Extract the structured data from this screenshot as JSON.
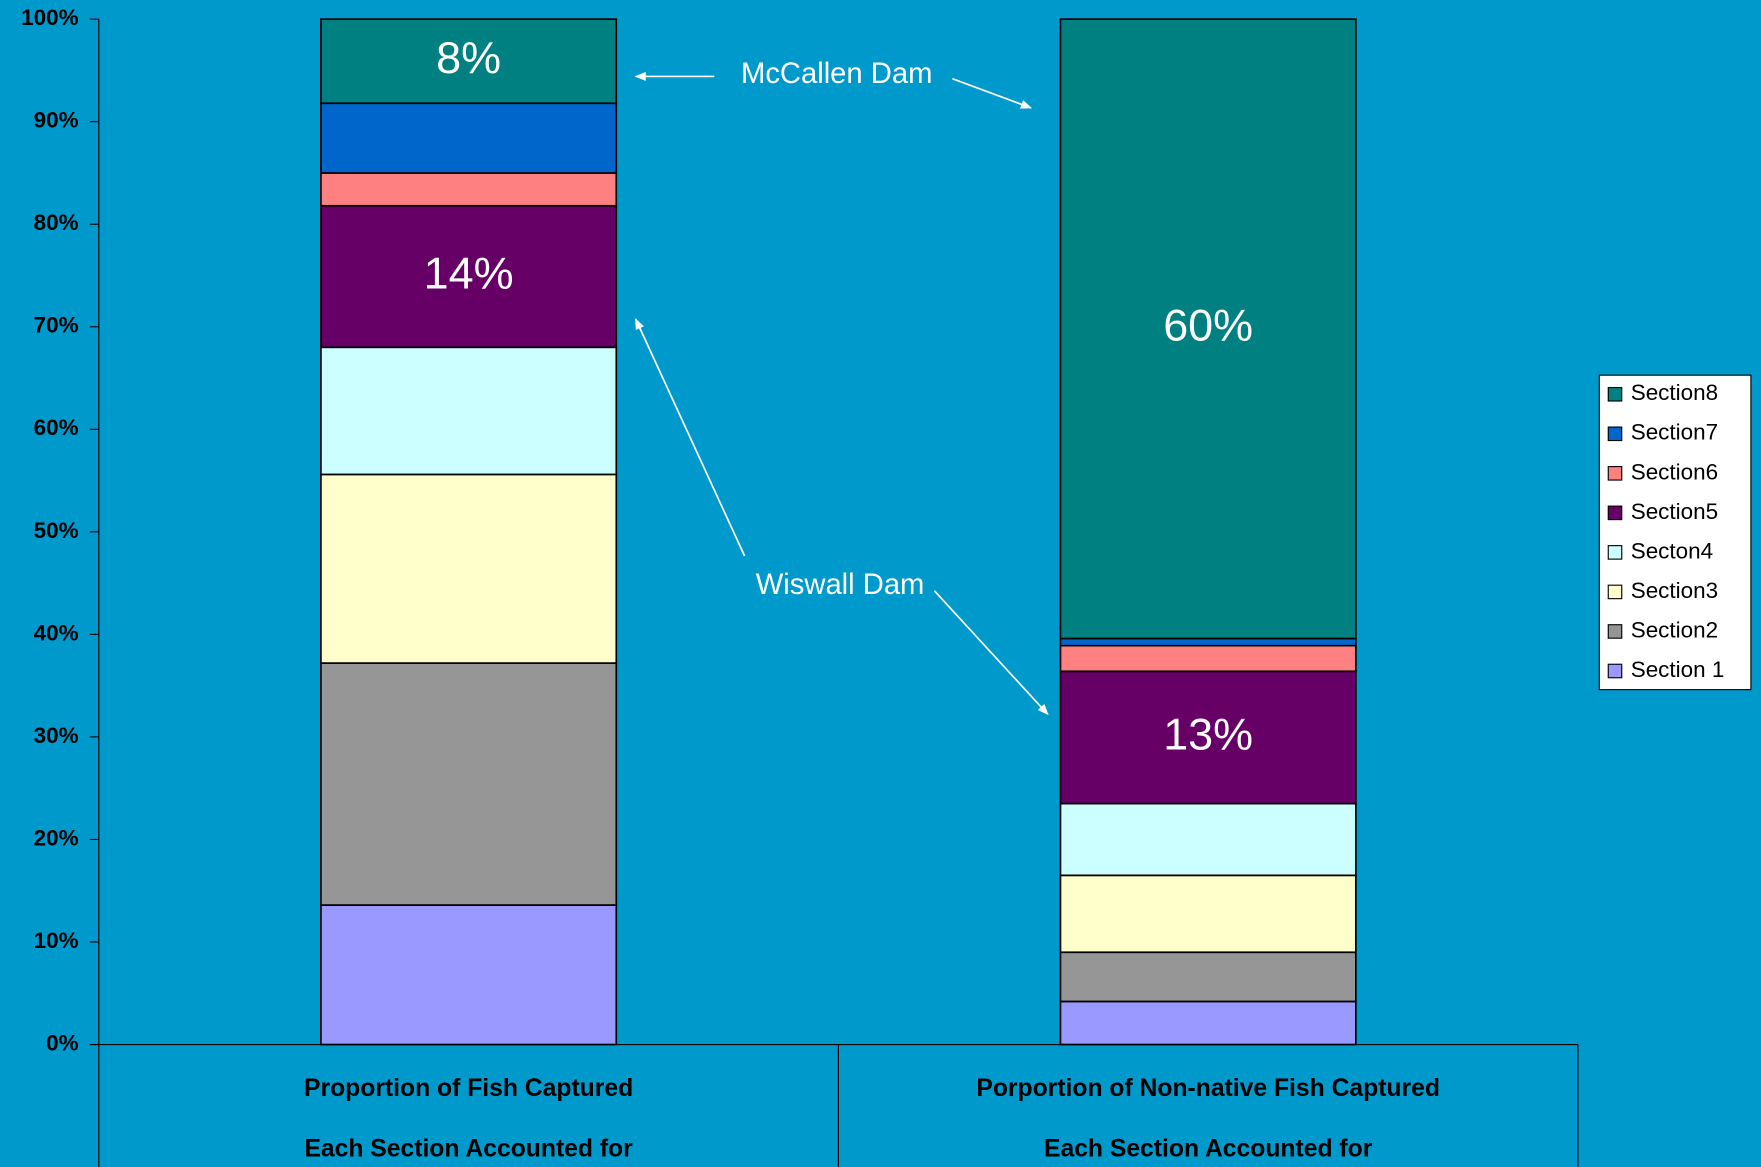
{
  "chart_data": {
    "type": "stacked_bar",
    "categories": [
      [
        "Proportion of  Fish Captured",
        "Each Section Accounted for"
      ],
      [
        "Porportion of Non-native Fish Captured",
        "Each Section Accounted for"
      ]
    ],
    "series": [
      {
        "name": "Section 1",
        "color": "#9999ff",
        "values": [
          13.6,
          4.2
        ]
      },
      {
        "name": "Section2",
        "color": "#969696",
        "values": [
          23.6,
          4.8
        ]
      },
      {
        "name": "Section3",
        "color": "#ffffcc",
        "values": [
          18.4,
          7.5
        ]
      },
      {
        "name": "Secton4",
        "color": "#ccffff",
        "values": [
          12.4,
          7.0
        ]
      },
      {
        "name": "Section5",
        "color": "#660066",
        "values": [
          13.8,
          12.9
        ],
        "value_labels": [
          "14%",
          "13%"
        ]
      },
      {
        "name": "Section6",
        "color": "#ff8080",
        "values": [
          3.2,
          2.5
        ]
      },
      {
        "name": "Section7",
        "color": "#0066cc",
        "values": [
          6.8,
          0.7
        ]
      },
      {
        "name": "Section8",
        "color": "#008080",
        "values": [
          8.2,
          60.4
        ],
        "value_labels": [
          "8%",
          "60%"
        ]
      }
    ],
    "ylim": [
      0,
      100
    ],
    "yticks": [
      {
        "value": 0,
        "label": "0%"
      },
      {
        "value": 10,
        "label": "10%"
      },
      {
        "value": 20,
        "label": "20%"
      },
      {
        "value": 30,
        "label": "30%"
      },
      {
        "value": 40,
        "label": "40%"
      },
      {
        "value": 50,
        "label": "50%"
      },
      {
        "value": 60,
        "label": "60%"
      },
      {
        "value": 70,
        "label": "70%"
      },
      {
        "value": 80,
        "label": "80%"
      },
      {
        "value": 90,
        "label": "90%"
      },
      {
        "value": 100,
        "label": "100%"
      }
    ],
    "legend": "right",
    "annotations": [
      {
        "text": "McCallen Dam"
      },
      {
        "text": "Wiswall Dam"
      }
    ]
  }
}
